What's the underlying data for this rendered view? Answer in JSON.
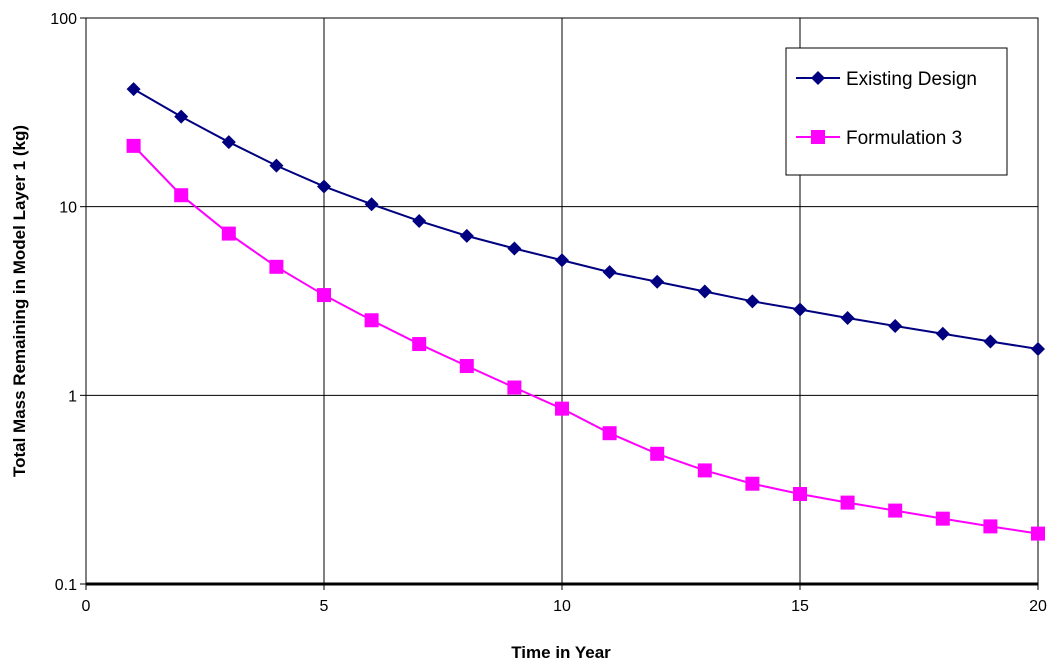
{
  "chart_data": {
    "type": "line",
    "title": "",
    "xlabel": "Time  in Year",
    "ylabel": "Total Mass Remaining in Model Layer 1 (kg)",
    "xlim": [
      0,
      20
    ],
    "ylim": [
      0.1,
      100
    ],
    "yscale": "log",
    "grid": true,
    "legend": "top-right",
    "x_ticks": [
      "0",
      "5",
      "10",
      "15",
      "20"
    ],
    "x_tick_values": [
      0,
      5,
      10,
      15,
      20
    ],
    "y_ticks": [
      "0.1",
      "1",
      "10",
      "100"
    ],
    "y_tick_values": [
      0.1,
      1,
      10,
      100
    ],
    "x": [
      1,
      2,
      3,
      4,
      5,
      6,
      7,
      8,
      9,
      10,
      11,
      12,
      13,
      14,
      15,
      16,
      17,
      18,
      19,
      20
    ],
    "series": [
      {
        "name": "Existing Design",
        "color": "#000080",
        "marker": "diamond",
        "values": [
          42,
          30,
          22,
          16.5,
          12.8,
          10.3,
          8.4,
          7.0,
          6.0,
          5.2,
          4.5,
          4.0,
          3.55,
          3.15,
          2.85,
          2.57,
          2.33,
          2.12,
          1.93,
          1.76
        ]
      },
      {
        "name": "Formulation 3",
        "color": "#ff00ff",
        "marker": "square",
        "values": [
          21,
          11.5,
          7.2,
          4.8,
          3.4,
          2.5,
          1.87,
          1.43,
          1.1,
          0.85,
          0.63,
          0.49,
          0.4,
          0.34,
          0.3,
          0.27,
          0.245,
          0.222,
          0.202,
          0.185
        ]
      }
    ]
  }
}
